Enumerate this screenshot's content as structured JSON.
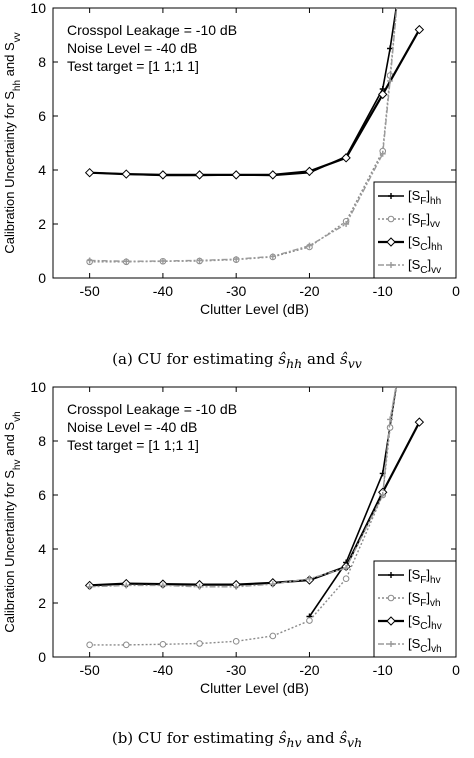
{
  "chart_data": [
    {
      "type": "line",
      "ylabel": "Calibration Uncertainty for S_hh and S_vv",
      "ylabel_parts": [
        "Calibration Uncertainty for S",
        "hh",
        " and S",
        "vv"
      ],
      "xlabel": "Clutter Level (dB)",
      "xlim": [
        -55,
        0
      ],
      "ylim": [
        0,
        10
      ],
      "xticks": [
        -50,
        -40,
        -30,
        -20,
        -10,
        0
      ],
      "yticks": [
        0,
        2,
        4,
        6,
        8,
        10
      ],
      "annotations": [
        "Crosspol Leakage = -10 dB",
        "Noise Level = -40 dB",
        "Test target = [1 1;1 1]"
      ],
      "legend_position": "bottom-right",
      "caption_parts": [
        "(a) CU for estimating ",
        "ŝ",
        "hh",
        " and ",
        "ŝ",
        "vv"
      ],
      "series": [
        {
          "name": "[S_F]_hh",
          "label_main": "[S",
          "label_sub1": "F",
          "label_close": "]",
          "label_sub2": "hh",
          "style": "solid-plus",
          "x": [
            -50,
            -45,
            -40,
            -35,
            -30,
            -25,
            -20,
            -15,
            -10,
            -9,
            -8
          ],
          "y": [
            3.9,
            3.85,
            3.8,
            3.8,
            3.82,
            3.8,
            3.9,
            4.5,
            7.0,
            8.5,
            10.3
          ]
        },
        {
          "name": "[S_F]_vv",
          "label_main": "[S",
          "label_sub1": "F",
          "label_close": "]",
          "label_sub2": "vv",
          "style": "gray-dotted-circle",
          "x": [
            -50,
            -45,
            -40,
            -35,
            -30,
            -25,
            -20,
            -15,
            -10,
            -9,
            -8
          ],
          "y": [
            0.6,
            0.6,
            0.62,
            0.63,
            0.68,
            0.78,
            1.15,
            2.1,
            4.7,
            7.5,
            10.3
          ]
        },
        {
          "name": "[S_C]_hh",
          "label_main": "[S",
          "label_sub1": "C",
          "label_close": "]",
          "label_sub2": "hh",
          "style": "solid-diamond",
          "x": [
            -50,
            -45,
            -40,
            -35,
            -30,
            -25,
            -20,
            -15,
            -10,
            -5
          ],
          "y": [
            3.9,
            3.85,
            3.82,
            3.82,
            3.82,
            3.82,
            3.95,
            4.45,
            6.8,
            9.2
          ]
        },
        {
          "name": "[S_C]_vv",
          "label_main": "[S",
          "label_sub1": "C",
          "label_close": "]",
          "label_sub2": "vv",
          "style": "gray-dashdot-plus",
          "x": [
            -50,
            -45,
            -40,
            -35,
            -30,
            -25,
            -20,
            -15,
            -10,
            -9,
            -8
          ],
          "y": [
            0.65,
            0.62,
            0.63,
            0.65,
            0.7,
            0.8,
            1.2,
            2.0,
            4.6,
            7.3,
            10.3
          ]
        }
      ]
    },
    {
      "type": "line",
      "ylabel": "Calibration Uncertainty for S_hv and S_vh",
      "ylabel_parts": [
        "Calibration Uncertainty for S",
        "hv",
        " and S",
        "vh"
      ],
      "xlabel": "Clutter Level (dB)",
      "xlim": [
        -55,
        0
      ],
      "ylim": [
        0,
        10
      ],
      "xticks": [
        -50,
        -40,
        -30,
        -20,
        -10,
        0
      ],
      "yticks": [
        0,
        2,
        4,
        6,
        8,
        10
      ],
      "annotations": [
        "Crosspol Leakage = -10 dB",
        "Noise Level = -40 dB",
        "Test target = [1 1;1 1]"
      ],
      "legend_position": "bottom-right",
      "caption_parts": [
        "(b) CU for estimating ",
        "ŝ",
        "hv",
        " and ",
        "ŝ",
        "vh"
      ],
      "series": [
        {
          "name": "[S_F]_hv",
          "label_main": "[S",
          "label_sub1": "F",
          "label_close": "]",
          "label_sub2": "hv",
          "style": "solid-plus",
          "x": [
            -20,
            -15,
            -10,
            -8
          ],
          "y": [
            1.5,
            3.5,
            6.8,
            10.3
          ]
        },
        {
          "name": "[S_F]_vh",
          "label_main": "[S",
          "label_sub1": "F",
          "label_close": "]",
          "label_sub2": "vh",
          "style": "gray-dotted-circle",
          "x": [
            -50,
            -45,
            -40,
            -35,
            -30,
            -25,
            -20,
            -15,
            -10,
            -9,
            -8
          ],
          "y": [
            0.45,
            0.45,
            0.47,
            0.5,
            0.58,
            0.78,
            1.35,
            2.9,
            6.0,
            8.5,
            10.3
          ]
        },
        {
          "name": "[S_C]_hv",
          "label_main": "[S",
          "label_sub1": "C",
          "label_close": "]",
          "label_sub2": "hv",
          "style": "solid-diamond",
          "x": [
            -50,
            -45,
            -40,
            -35,
            -30,
            -25,
            -20,
            -15,
            -10,
            -5
          ],
          "y": [
            2.65,
            2.72,
            2.7,
            2.68,
            2.68,
            2.75,
            2.85,
            3.35,
            6.1,
            8.7
          ]
        },
        {
          "name": "[S_C]_vh",
          "label_main": "[S",
          "label_sub1": "C",
          "label_close": "]",
          "label_sub2": "vh",
          "style": "gray-dashdot-plus",
          "x": [
            -50,
            -45,
            -40,
            -35,
            -30,
            -25,
            -20,
            -15,
            -10,
            -9,
            -8
          ],
          "y": [
            2.6,
            2.65,
            2.65,
            2.6,
            2.6,
            2.7,
            2.9,
            3.3,
            6.0,
            8.8,
            10.3
          ]
        }
      ]
    }
  ]
}
